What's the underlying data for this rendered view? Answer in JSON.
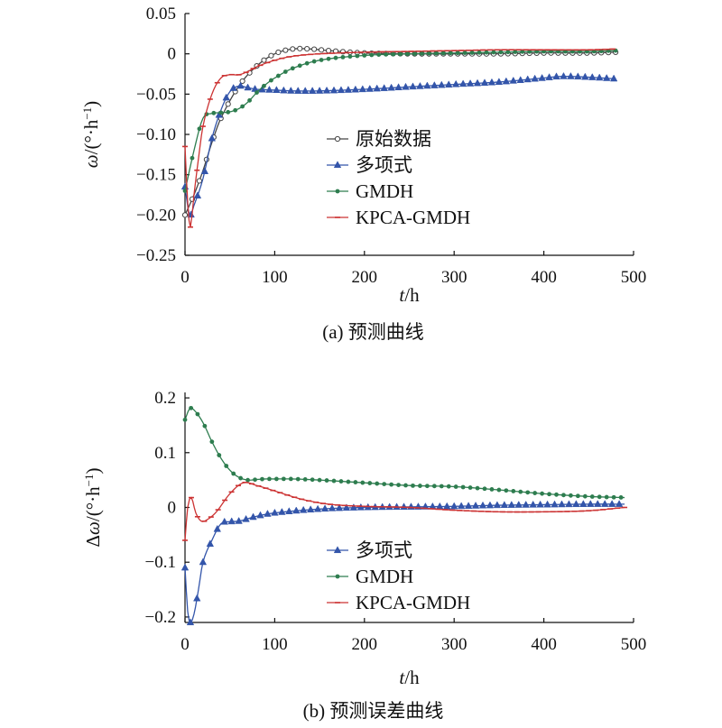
{
  "chart_data": [
    {
      "type": "line",
      "caption": "(a) 预测曲线",
      "xlabel_italic": "t",
      "xlabel_rest": "/h",
      "ylabel_italic": "ω",
      "ylabel_rest": "/(°·h",
      "ylabel_sup": "−1",
      "ylabel_close": ")",
      "xlim": [
        0,
        500
      ],
      "ylim": [
        -0.25,
        0.05
      ],
      "x_ticks": [
        0,
        100,
        200,
        300,
        400,
        500
      ],
      "x_tick_labels": [
        "0",
        "100",
        "200",
        "300",
        "400",
        "500"
      ],
      "y_ticks": [
        0.05,
        0,
        -0.05,
        -0.1,
        -0.15,
        -0.2,
        -0.25
      ],
      "y_tick_labels": [
        "0.05",
        "0",
        "−0.05",
        "−0.10",
        "−0.15",
        "−0.20",
        "−0.25"
      ],
      "legend_position": "center-right",
      "series": [
        {
          "name": "原始数据",
          "color": "#444444",
          "marker": "circle-open",
          "x": [
            0,
            10,
            20,
            30,
            40,
            60,
            80,
            100,
            120,
            140,
            160,
            200,
            250,
            300,
            350,
            400,
            450,
            480
          ],
          "y": [
            -0.2,
            -0.175,
            -0.145,
            -0.11,
            -0.08,
            -0.04,
            -0.015,
            0.0,
            0.006,
            0.006,
            0.004,
            0.001,
            0.0,
            0.0,
            0.0,
            0.001,
            0.001,
            0.002
          ]
        },
        {
          "name": "多项式",
          "color": "#3355aa",
          "marker": "triangle",
          "x": [
            0,
            5,
            10,
            20,
            30,
            40,
            50,
            60,
            70,
            80,
            100,
            120,
            150,
            200,
            250,
            300,
            350,
            400,
            420,
            450,
            480
          ],
          "y": [
            -0.165,
            -0.2,
            -0.188,
            -0.155,
            -0.105,
            -0.07,
            -0.047,
            -0.04,
            -0.042,
            -0.044,
            -0.045,
            -0.046,
            -0.046,
            -0.044,
            -0.041,
            -0.038,
            -0.035,
            -0.03,
            -0.028,
            -0.029,
            -0.031
          ]
        },
        {
          "name": "GMDH",
          "color": "#2e7d4f",
          "marker": "dot",
          "x": [
            0,
            10,
            20,
            30,
            40,
            50,
            60,
            70,
            80,
            90,
            100,
            120,
            150,
            200,
            250,
            300,
            350,
            400,
            450,
            480
          ],
          "y": [
            -0.17,
            -0.12,
            -0.08,
            -0.074,
            -0.073,
            -0.072,
            -0.068,
            -0.06,
            -0.048,
            -0.038,
            -0.03,
            -0.018,
            -0.008,
            -0.002,
            0.0,
            0.001,
            0.002,
            0.003,
            0.003,
            0.004
          ]
        },
        {
          "name": "KPCA-GMDH",
          "color": "#cc3333",
          "marker": "dash",
          "x": [
            0,
            3,
            6,
            10,
            15,
            20,
            30,
            40,
            50,
            60,
            70,
            80,
            100,
            120,
            150,
            200,
            250,
            300,
            350,
            400,
            450,
            480
          ],
          "y": [
            -0.115,
            -0.185,
            -0.215,
            -0.175,
            -0.13,
            -0.09,
            -0.05,
            -0.03,
            -0.026,
            -0.026,
            -0.022,
            -0.016,
            -0.008,
            -0.003,
            0.0,
            0.002,
            0.003,
            0.004,
            0.005,
            0.005,
            0.005,
            0.006
          ]
        }
      ]
    },
    {
      "type": "line",
      "caption": "(b) 预测误差曲线",
      "xlabel_italic": "t",
      "xlabel_rest": "/h",
      "ylabel_delta": "Δ",
      "ylabel_italic": "ω",
      "ylabel_rest": "/(°·h",
      "ylabel_sup": "−1",
      "ylabel_close": ")",
      "xlim": [
        0,
        500
      ],
      "ylim": [
        -0.21,
        0.21
      ],
      "x_ticks": [
        0,
        100,
        200,
        300,
        400,
        500
      ],
      "x_tick_labels": [
        "0",
        "100",
        "200",
        "300",
        "400",
        "500"
      ],
      "y_ticks": [
        0.2,
        0.1,
        0,
        -0.1,
        -0.2
      ],
      "y_tick_labels": [
        "0.2",
        "0.1",
        "0",
        "−0.1",
        "−0.2"
      ],
      "legend_position": "bottom-center",
      "series": [
        {
          "name": "多项式",
          "color": "#3355aa",
          "marker": "triangle",
          "x": [
            0,
            3,
            6,
            10,
            15,
            20,
            30,
            40,
            50,
            60,
            80,
            100,
            150,
            200,
            250,
            300,
            350,
            400,
            450,
            490
          ],
          "y": [
            -0.11,
            -0.19,
            -0.21,
            -0.195,
            -0.15,
            -0.1,
            -0.06,
            -0.03,
            -0.026,
            -0.025,
            -0.016,
            -0.01,
            -0.003,
            0.0,
            0.001,
            0.002,
            0.004,
            0.005,
            0.006,
            0.006
          ]
        },
        {
          "name": "GMDH",
          "color": "#2e7d4f",
          "marker": "dot",
          "x": [
            0,
            5,
            10,
            20,
            30,
            40,
            50,
            60,
            70,
            80,
            90,
            100,
            120,
            150,
            200,
            250,
            300,
            350,
            400,
            450,
            490
          ],
          "y": [
            0.16,
            0.18,
            0.178,
            0.155,
            0.12,
            0.09,
            0.068,
            0.055,
            0.05,
            0.051,
            0.052,
            0.052,
            0.052,
            0.05,
            0.045,
            0.04,
            0.038,
            0.032,
            0.025,
            0.02,
            0.018
          ]
        },
        {
          "name": "KPCA-GMDH",
          "color": "#cc3333",
          "marker": "dash",
          "x": [
            0,
            3,
            7,
            12,
            18,
            25,
            35,
            50,
            65,
            80,
            100,
            130,
            160,
            200,
            250,
            300,
            350,
            400,
            450,
            490
          ],
          "y": [
            -0.06,
            0.0,
            0.018,
            -0.01,
            -0.025,
            -0.022,
            -0.008,
            0.025,
            0.045,
            0.04,
            0.03,
            0.015,
            0.006,
            0.002,
            0.0,
            -0.005,
            -0.008,
            -0.008,
            -0.006,
            0.0
          ]
        }
      ]
    }
  ]
}
